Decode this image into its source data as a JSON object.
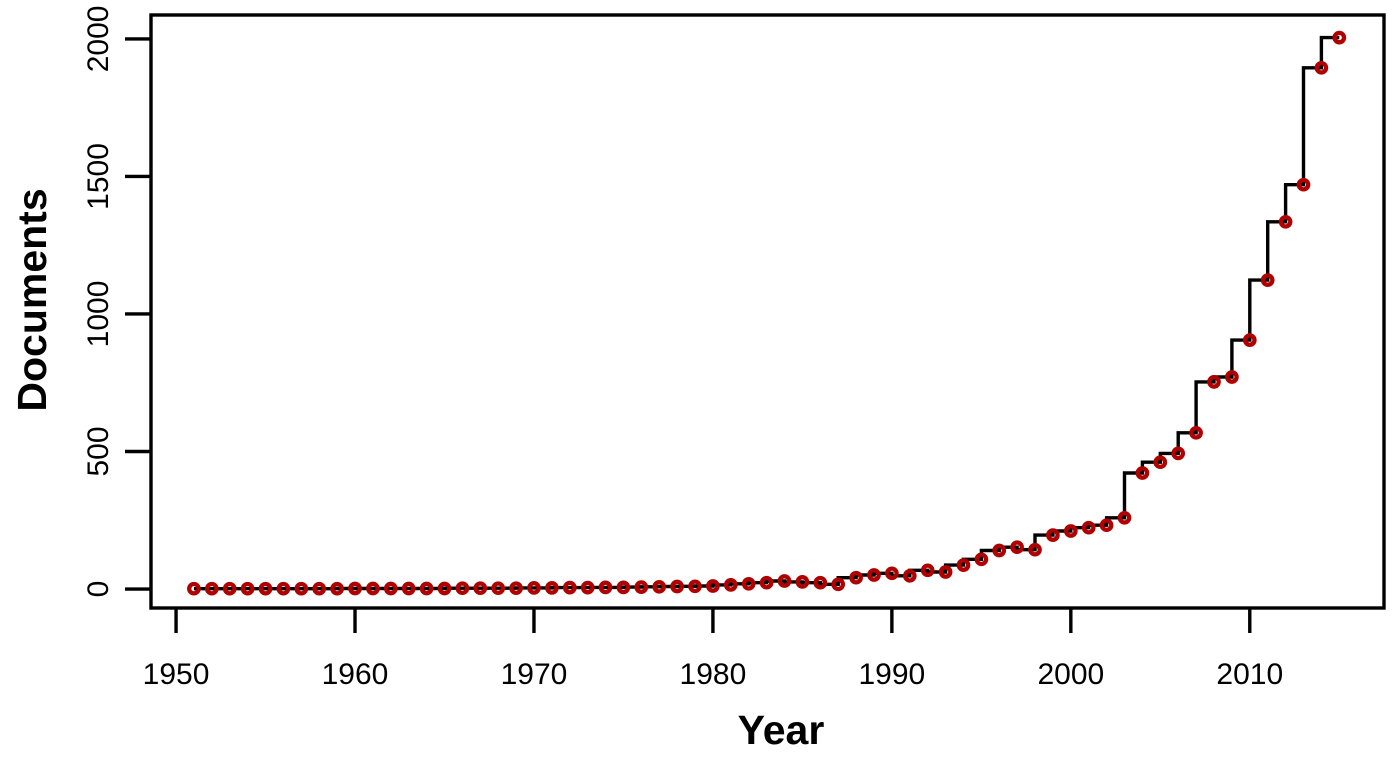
{
  "figure": {
    "background_color": "#ffffff",
    "axis_color": "#000000",
    "step_line_color": "#000000",
    "marker_color": "#b00000",
    "x_axis_title": "Year",
    "y_axis_title": "Documents"
  },
  "chart_data": {
    "type": "line",
    "subtype": "step-before",
    "title": "",
    "xlabel": "Year",
    "ylabel": "Documents",
    "series_name": "Documents",
    "marker": "open-circle",
    "grid": false,
    "legend": "none",
    "x_ticks": [
      1950,
      1960,
      1970,
      1980,
      1990,
      2000,
      2010
    ],
    "y_ticks": [
      0,
      500,
      1000,
      1500,
      2000
    ],
    "xlim": [
      1948.6,
      2017.5
    ],
    "ylim": [
      -69,
      2087
    ],
    "x": [
      1951,
      1952,
      1953,
      1954,
      1955,
      1956,
      1957,
      1958,
      1959,
      1960,
      1961,
      1962,
      1963,
      1964,
      1965,
      1966,
      1967,
      1968,
      1969,
      1970,
      1971,
      1972,
      1973,
      1974,
      1975,
      1976,
      1977,
      1978,
      1979,
      1980,
      1981,
      1982,
      1983,
      1984,
      1985,
      1986,
      1987,
      1988,
      1989,
      1990,
      1991,
      1992,
      1993,
      1994,
      1995,
      1996,
      1997,
      1998,
      1999,
      2000,
      2001,
      2002,
      2003,
      2004,
      2005,
      2006,
      2007,
      2008,
      2009,
      2010,
      2011,
      2012,
      2013,
      2014,
      2015
    ],
    "y": [
      1,
      1,
      1,
      1,
      1,
      1,
      1,
      1,
      1,
      2,
      2,
      2,
      2,
      2,
      2,
      3,
      3,
      3,
      3,
      4,
      4,
      5,
      5,
      6,
      6,
      7,
      8,
      9,
      10,
      11,
      15,
      19,
      23,
      29,
      26,
      23,
      17,
      41,
      51,
      57,
      48,
      68,
      62,
      87,
      108,
      140,
      152,
      143,
      196,
      211,
      223,
      232,
      259,
      422,
      461,
      493,
      568,
      753,
      771,
      905,
      1123,
      1335,
      1470,
      1895,
      2005
    ]
  }
}
